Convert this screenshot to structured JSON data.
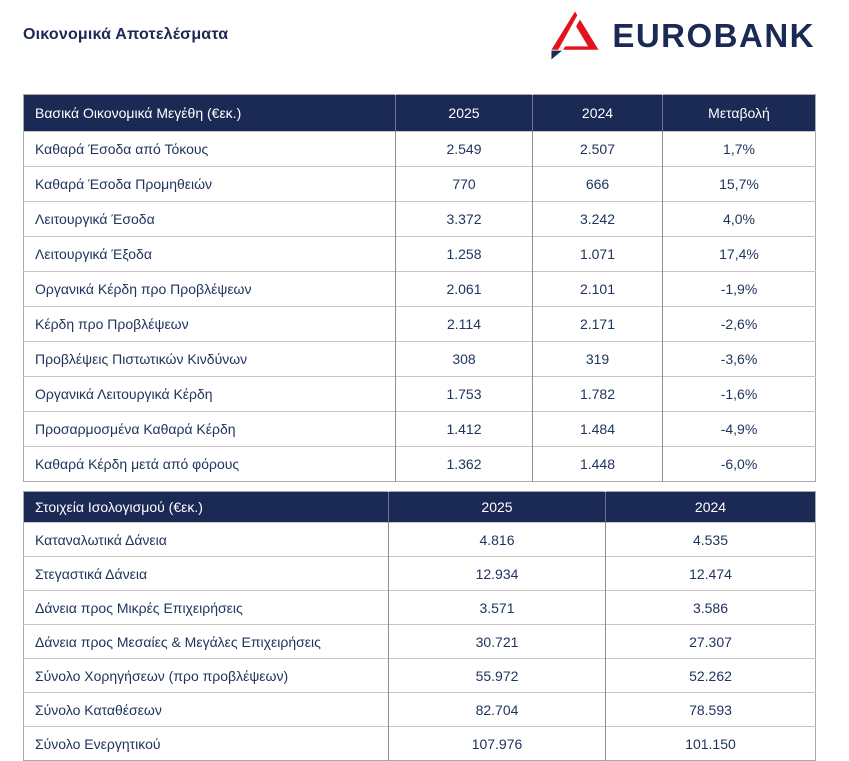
{
  "page": {
    "title": "Οικονομικά Αποτελέσματα"
  },
  "logo": {
    "wordmark": "EUROBANK",
    "mark_icon": "eurobank-triangle-logo"
  },
  "colors": {
    "brand_navy": "#1b2a55",
    "brand_red": "#e2131f",
    "table_text": "#20355e"
  },
  "income_table": {
    "headers": [
      "Βασικά Οικονομικά Μεγέθη (€εκ.)",
      "2025",
      "2024",
      "Μεταβολή"
    ],
    "rows": [
      [
        "Καθαρά Έσοδα από Τόκους",
        "2.549",
        "2.507",
        "1,7%"
      ],
      [
        "Καθαρά Έσοδα Προμηθειών",
        "770",
        "666",
        "15,7%"
      ],
      [
        "Λειτουργικά Έσοδα",
        "3.372",
        "3.242",
        "4,0%"
      ],
      [
        "Λειτουργικά Έξοδα",
        "1.258",
        "1.071",
        "17,4%"
      ],
      [
        "Οργανικά Κέρδη προ Προβλέψεων",
        "2.061",
        "2.101",
        "-1,9%"
      ],
      [
        "Κέρδη προ Προβλέψεων",
        "2.114",
        "2.171",
        "-2,6%"
      ],
      [
        "Προβλέψεις Πιστωτικών Κινδύνων",
        "308",
        "319",
        "-3,6%"
      ],
      [
        "Οργανικά Λειτουργικά Κέρδη",
        "1.753",
        "1.782",
        "-1,6%"
      ],
      [
        "Προσαρμοσμένα Καθαρά Κέρδη",
        "1.412",
        "1.484",
        "-4,9%"
      ],
      [
        "Καθαρά Κέρδη μετά από φόρους",
        "1.362",
        "1.448",
        "-6,0%"
      ]
    ]
  },
  "balance_table": {
    "headers": [
      "Στοιχεία Ισολογισμού (€εκ.)",
      "2025",
      "2024"
    ],
    "rows": [
      [
        "Καταναλωτικά Δάνεια",
        "4.816",
        "4.535"
      ],
      [
        "Στεγαστικά Δάνεια",
        "12.934",
        "12.474"
      ],
      [
        "Δάνεια προς Μικρές Επιχειρήσεις",
        "3.571",
        "3.586"
      ],
      [
        "Δάνεια προς Μεσαίες & Μεγάλες Επιχειρήσεις",
        "30.721",
        "27.307"
      ],
      [
        "Σύνολο Χορηγήσεων (προ προβλέψεων)",
        "55.972",
        "52.262"
      ],
      [
        "Σύνολο Καταθέσεων",
        "82.704",
        "78.593"
      ],
      [
        "Σύνολο Ενεργητικού",
        "107.976",
        "101.150"
      ]
    ]
  }
}
